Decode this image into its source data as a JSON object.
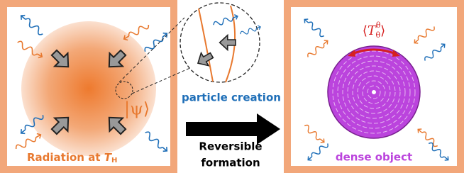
{
  "left_panel": {
    "state_label": "|ψ⟩",
    "caption": "Radiation at ",
    "caption_symbol": "T",
    "caption_subscript": "H"
  },
  "zoom": {
    "label": "particle creation"
  },
  "transition": {
    "label_lines": [
      "Reversible",
      "formation"
    ]
  },
  "right_panel": {
    "stress_label": {
      "open": "⟨",
      "symbol": "T",
      "superscript": "θ",
      "subscript": "θ",
      "close": "⟩"
    },
    "caption": "dense object"
  }
}
